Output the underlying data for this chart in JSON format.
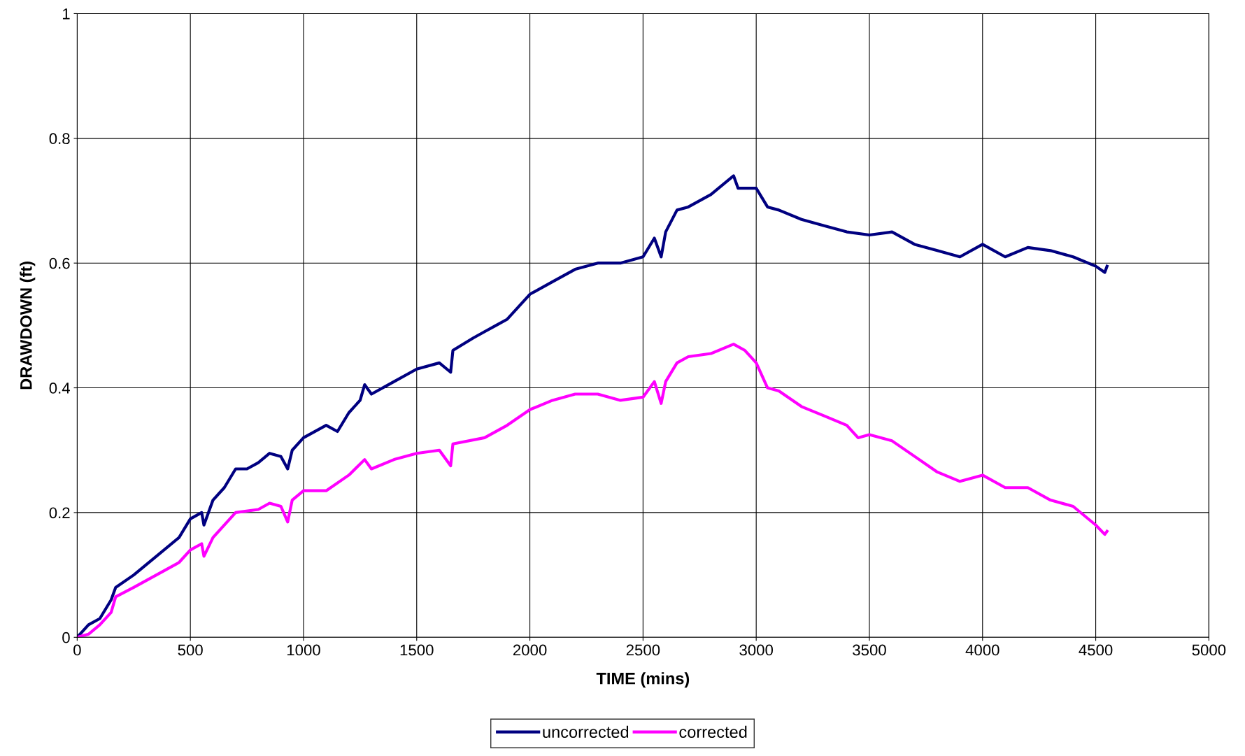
{
  "chart_data": {
    "type": "line",
    "xlabel": "TIME (mins)",
    "ylabel": "DRAWDOWN (ft)",
    "xlim": [
      0,
      5000
    ],
    "xticks": [
      0,
      500,
      1000,
      1500,
      2000,
      2500,
      3000,
      3500,
      4000,
      4500,
      5000
    ],
    "ylim": [
      0,
      1
    ],
    "yticks": [
      0,
      0.2,
      0.4,
      0.6,
      0.8,
      1
    ],
    "grid": true,
    "legend": "bottom",
    "marker": "none",
    "line_style": "solid",
    "series": [
      {
        "name": "uncorrected",
        "color": "#000080",
        "x": [
          0,
          50,
          100,
          150,
          170,
          250,
          350,
          450,
          500,
          550,
          560,
          600,
          650,
          700,
          750,
          800,
          850,
          900,
          930,
          950,
          1000,
          1100,
          1150,
          1200,
          1250,
          1270,
          1300,
          1400,
          1500,
          1600,
          1650,
          1660,
          1750,
          1800,
          1850,
          1900,
          1950,
          2000,
          2100,
          2200,
          2300,
          2400,
          2500,
          2550,
          2580,
          2600,
          2650,
          2700,
          2800,
          2900,
          2920,
          3000,
          3050,
          3100,
          3200,
          3300,
          3400,
          3500,
          3600,
          3700,
          3800,
          3900,
          4000,
          4100,
          4200,
          4300,
          4400,
          4500,
          4540,
          4550
        ],
        "values": [
          0,
          0.02,
          0.03,
          0.06,
          0.08,
          0.1,
          0.13,
          0.16,
          0.19,
          0.2,
          0.18,
          0.22,
          0.24,
          0.27,
          0.27,
          0.28,
          0.295,
          0.29,
          0.27,
          0.3,
          0.32,
          0.34,
          0.33,
          0.36,
          0.38,
          0.405,
          0.39,
          0.41,
          0.43,
          0.44,
          0.425,
          0.46,
          0.48,
          0.49,
          0.5,
          0.51,
          0.53,
          0.55,
          0.57,
          0.59,
          0.6,
          0.6,
          0.61,
          0.64,
          0.61,
          0.65,
          0.685,
          0.69,
          0.71,
          0.74,
          0.72,
          0.72,
          0.69,
          0.685,
          0.67,
          0.66,
          0.65,
          0.645,
          0.65,
          0.63,
          0.62,
          0.61,
          0.63,
          0.61,
          0.625,
          0.62,
          0.61,
          0.595,
          0.585,
          0.595
        ]
      },
      {
        "name": "corrected",
        "color": "#ff00ff",
        "x": [
          0,
          50,
          100,
          150,
          170,
          250,
          350,
          450,
          500,
          550,
          560,
          600,
          700,
          800,
          850,
          900,
          930,
          950,
          1000,
          1100,
          1200,
          1270,
          1300,
          1400,
          1500,
          1600,
          1650,
          1660,
          1800,
          1900,
          2000,
          2100,
          2200,
          2300,
          2400,
          2500,
          2550,
          2580,
          2600,
          2650,
          2700,
          2800,
          2900,
          2950,
          3000,
          3050,
          3100,
          3200,
          3300,
          3400,
          3450,
          3500,
          3600,
          3700,
          3800,
          3900,
          4000,
          4100,
          4200,
          4300,
          4400,
          4500,
          4540,
          4550
        ],
        "values": [
          0,
          0.005,
          0.02,
          0.04,
          0.065,
          0.08,
          0.1,
          0.12,
          0.14,
          0.15,
          0.13,
          0.16,
          0.2,
          0.205,
          0.215,
          0.21,
          0.185,
          0.22,
          0.235,
          0.235,
          0.26,
          0.285,
          0.27,
          0.285,
          0.295,
          0.3,
          0.275,
          0.31,
          0.32,
          0.34,
          0.365,
          0.38,
          0.39,
          0.39,
          0.38,
          0.385,
          0.41,
          0.375,
          0.41,
          0.44,
          0.45,
          0.455,
          0.47,
          0.46,
          0.44,
          0.4,
          0.395,
          0.37,
          0.355,
          0.34,
          0.32,
          0.325,
          0.315,
          0.29,
          0.265,
          0.25,
          0.26,
          0.24,
          0.24,
          0.22,
          0.21,
          0.18,
          0.165,
          0.17
        ]
      }
    ]
  }
}
